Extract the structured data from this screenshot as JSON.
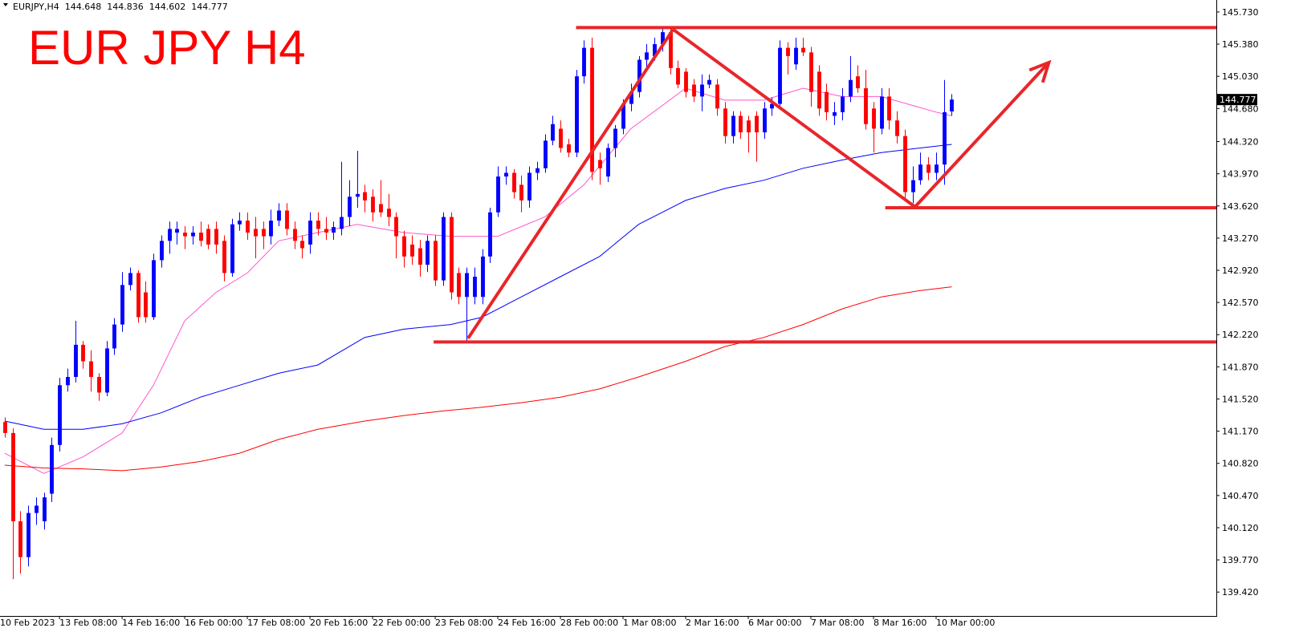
{
  "chart_data": {
    "type": "candlestick",
    "title": "EUR JPY H4",
    "header": {
      "symbol": "EURJPY,H4",
      "ohlc": [
        144.648,
        144.836,
        144.602,
        144.777
      ]
    },
    "current_price": 144.777,
    "up_color": "#0000ff",
    "down_color": "#ff0000",
    "xlim": [
      0.4,
      155.8
    ],
    "ylim": [
      139.16,
      145.86
    ],
    "xticks": [
      {
        "value": 0,
        "label": "10 Feb 2023"
      },
      {
        "value": 8,
        "label": "13 Feb 08:00"
      },
      {
        "value": 16,
        "label": "14 Feb 16:00"
      },
      {
        "value": 24,
        "label": "16 Feb 00:00"
      },
      {
        "value": 32,
        "label": "17 Feb 08:00"
      },
      {
        "value": 40,
        "label": "20 Feb 16:00"
      },
      {
        "value": 48,
        "label": "22 Feb 00:00"
      },
      {
        "value": 56,
        "label": "23 Feb 08:00"
      },
      {
        "value": 64,
        "label": "24 Feb 16:00"
      },
      {
        "value": 72,
        "label": "28 Feb 00:00"
      },
      {
        "value": 80,
        "label": "1 Mar 08:00"
      },
      {
        "value": 88,
        "label": "2 Mar 16:00"
      },
      {
        "value": 96,
        "label": "6 Mar 00:00"
      },
      {
        "value": 104,
        "label": "7 Mar 08:00"
      },
      {
        "value": 112,
        "label": "8 Mar 16:00"
      },
      {
        "value": 120,
        "label": "10 Mar 00:00"
      }
    ],
    "yticks": [
      {
        "value": 145.73,
        "label": "145.730"
      },
      {
        "value": 145.38,
        "label": "145.380"
      },
      {
        "value": 145.03,
        "label": "145.030"
      },
      {
        "value": 144.68,
        "label": "144.680"
      },
      {
        "value": 144.32,
        "label": "144.320"
      },
      {
        "value": 143.97,
        "label": "143.970"
      },
      {
        "value": 143.62,
        "label": "143.620"
      },
      {
        "value": 143.27,
        "label": "143.270"
      },
      {
        "value": 142.92,
        "label": "142.920"
      },
      {
        "value": 142.57,
        "label": "142.570"
      },
      {
        "value": 142.22,
        "label": "142.220"
      },
      {
        "value": 141.87,
        "label": "141.870"
      },
      {
        "value": 141.52,
        "label": "141.520"
      },
      {
        "value": 141.17,
        "label": "141.170"
      },
      {
        "value": 140.82,
        "label": "140.820"
      },
      {
        "value": 140.47,
        "label": "140.470"
      },
      {
        "value": 140.12,
        "label": "140.120"
      },
      {
        "value": 139.77,
        "label": "139.770"
      },
      {
        "value": 139.42,
        "label": "139.420"
      }
    ],
    "x": [
      1,
      2,
      3,
      4,
      5,
      6,
      7,
      8,
      9,
      10,
      11,
      12,
      13,
      14,
      15,
      16,
      17,
      18,
      19,
      20,
      21,
      22,
      23,
      24,
      25,
      26,
      27,
      28,
      29,
      30,
      31,
      32,
      33,
      34,
      35,
      36,
      37,
      38,
      39,
      40,
      41,
      42,
      43,
      44,
      45,
      46,
      47,
      48,
      49,
      50,
      51,
      52,
      53,
      54,
      55,
      56,
      57,
      58,
      59,
      60,
      61,
      62,
      63,
      64,
      65,
      66,
      67,
      68,
      69,
      70,
      71,
      72,
      73,
      74,
      75,
      76,
      77,
      78,
      79,
      80,
      81,
      82,
      83,
      84,
      85,
      86,
      87,
      88,
      89,
      90,
      91,
      92,
      93,
      94,
      95,
      96,
      97,
      98,
      99,
      100,
      101,
      102,
      103,
      104,
      105,
      106,
      107,
      108,
      109,
      110,
      111,
      112,
      113,
      114,
      115,
      116,
      117,
      118,
      119,
      120,
      121,
      122
    ],
    "open": [
      141.27,
      141.15,
      140.19,
      139.8,
      140.28,
      140.19,
      140.49,
      141.02,
      141.67,
      141.76,
      142.11,
      141.93,
      141.76,
      141.59,
      142.07,
      142.33,
      142.76,
      142.89,
      142.68,
      142.41,
      143.03,
      143.24,
      143.33,
      143.33,
      143.29,
      143.33,
      143.37,
      143.37,
      143.24,
      142.89,
      143.42,
      143.46,
      143.37,
      143.37,
      143.29,
      143.46,
      143.57,
      143.37,
      143.24,
      143.2,
      143.46,
      143.37,
      143.33,
      143.37,
      143.5,
      143.72,
      143.77,
      143.72,
      143.64,
      143.59,
      143.5,
      143.29,
      143.2,
      143.16,
      142.98,
      143.24,
      142.81,
      143.5,
      142.89,
      142.63,
      142.63,
      142.63,
      143.07,
      143.55,
      143.94,
      143.98,
      143.85,
      143.68,
      143.98,
      144.03,
      144.33,
      144.46,
      144.29,
      144.2,
      145.03,
      145.34,
      144.12,
      143.94,
      144.25,
      144.46,
      144.73,
      144.86,
      145.21,
      145.25,
      145.38,
      145.51,
      145.12,
      145.08,
      144.94,
      144.81,
      144.94,
      144.94,
      144.68,
      144.38,
      144.6,
      144.55,
      144.6,
      144.42,
      144.68,
      144.73,
      145.34,
      145.16,
      145.34,
      145.29,
      145.08,
      144.86,
      144.6,
      144.64,
      144.81,
      145.03,
      144.9,
      144.68,
      144.46,
      144.81,
      144.55,
      144.38,
      143.77,
      143.9,
      144.07,
      143.98,
      144.07,
      144.648
    ],
    "high": [
      141.32,
      141.2,
      140.3,
      140.36,
      140.45,
      140.5,
      141.1,
      141.75,
      141.85,
      142.37,
      142.15,
      142.05,
      141.8,
      142.15,
      142.4,
      142.9,
      142.95,
      142.92,
      142.8,
      143.1,
      143.3,
      143.45,
      143.45,
      143.4,
      143.4,
      143.45,
      143.42,
      143.45,
      143.3,
      143.48,
      143.55,
      143.55,
      143.5,
      143.45,
      143.58,
      143.65,
      143.65,
      143.45,
      143.3,
      143.55,
      143.55,
      143.5,
      143.45,
      144.1,
      143.9,
      144.22,
      143.85,
      143.8,
      143.9,
      143.75,
      143.55,
      143.35,
      143.3,
      143.25,
      143.3,
      143.3,
      143.55,
      143.55,
      142.95,
      142.95,
      142.95,
      143.15,
      143.6,
      144.05,
      144.05,
      144.02,
      143.95,
      144.05,
      144.1,
      144.4,
      144.6,
      144.55,
      144.35,
      145.1,
      145.42,
      145.45,
      144.2,
      144.3,
      144.5,
      144.78,
      144.95,
      145.25,
      145.38,
      145.45,
      145.55,
      145.55,
      145.2,
      145.12,
      145.0,
      145.05,
      145.05,
      145.0,
      144.75,
      144.65,
      144.65,
      144.6,
      144.65,
      144.75,
      144.8,
      145.42,
      145.4,
      145.45,
      145.45,
      145.35,
      145.15,
      144.95,
      144.75,
      144.9,
      145.25,
      145.15,
      145.1,
      144.75,
      144.9,
      144.9,
      144.65,
      144.45,
      144.05,
      144.2,
      144.15,
      144.2,
      144.99,
      144.836
    ],
    "low": [
      141.1,
      139.56,
      139.62,
      139.7,
      140.15,
      140.1,
      140.4,
      140.95,
      141.6,
      141.7,
      141.85,
      141.6,
      141.5,
      141.55,
      142.0,
      142.25,
      142.7,
      142.35,
      142.35,
      142.38,
      142.95,
      143.1,
      143.2,
      143.15,
      143.2,
      143.18,
      143.15,
      143.1,
      142.8,
      142.85,
      143.35,
      143.25,
      143.05,
      143.15,
      143.2,
      143.4,
      143.3,
      143.15,
      143.05,
      143.1,
      143.3,
      143.25,
      143.25,
      143.3,
      143.4,
      143.6,
      143.55,
      143.45,
      143.5,
      143.4,
      143.05,
      142.95,
      142.98,
      142.85,
      142.9,
      142.75,
      142.75,
      142.6,
      142.55,
      142.14,
      142.55,
      142.55,
      143.0,
      143.5,
      143.85,
      143.7,
      143.55,
      143.6,
      143.9,
      143.98,
      144.28,
      144.2,
      144.15,
      144.15,
      144.95,
      143.9,
      143.85,
      143.88,
      144.15,
      144.4,
      144.65,
      144.8,
      145.1,
      145.2,
      145.3,
      145.05,
      144.9,
      144.8,
      144.75,
      144.65,
      144.9,
      144.6,
      144.3,
      144.3,
      144.35,
      144.2,
      144.1,
      144.35,
      144.6,
      144.7,
      145.05,
      145.1,
      145.25,
      144.7,
      144.6,
      144.55,
      144.5,
      144.55,
      144.75,
      144.85,
      144.45,
      144.2,
      144.4,
      144.45,
      144.3,
      143.7,
      143.65,
      143.85,
      143.9,
      143.9,
      143.85,
      144.602
    ],
    "close": [
      141.15,
      140.19,
      139.8,
      140.28,
      140.36,
      140.45,
      141.02,
      141.67,
      141.76,
      142.11,
      141.93,
      141.76,
      141.59,
      142.07,
      142.33,
      142.76,
      142.89,
      142.41,
      142.41,
      143.03,
      143.24,
      143.37,
      143.37,
      143.29,
      143.33,
      143.24,
      143.2,
      143.2,
      142.89,
      143.42,
      143.46,
      143.33,
      143.29,
      143.29,
      143.46,
      143.57,
      143.37,
      143.24,
      143.16,
      143.46,
      143.37,
      143.33,
      143.39,
      143.5,
      143.72,
      143.75,
      143.68,
      143.55,
      143.55,
      143.5,
      143.29,
      143.07,
      143.07,
      142.98,
      143.24,
      142.81,
      143.5,
      142.68,
      142.63,
      142.89,
      142.85,
      143.07,
      143.55,
      143.94,
      143.98,
      143.77,
      143.68,
      143.98,
      144.03,
      144.33,
      144.51,
      144.25,
      144.2,
      145.03,
      145.34,
      143.99,
      144.03,
      144.25,
      144.46,
      144.73,
      144.86,
      145.21,
      145.29,
      145.38,
      145.51,
      145.12,
      144.94,
      144.86,
      144.81,
      144.94,
      144.99,
      144.68,
      144.38,
      144.6,
      144.42,
      144.42,
      144.42,
      144.68,
      144.73,
      145.34,
      145.25,
      145.34,
      145.29,
      144.86,
      144.68,
      144.64,
      144.64,
      144.81,
      144.99,
      144.9,
      144.51,
      144.46,
      144.81,
      144.55,
      144.38,
      143.77,
      143.9,
      144.07,
      143.98,
      144.07,
      144.64,
      144.777
    ],
    "overlays": [
      {
        "color": "#ff55cc",
        "x": [
          1,
          6,
          11,
          16,
          20,
          24,
          28,
          32,
          36,
          41,
          46,
          52,
          58,
          64,
          70,
          75,
          81,
          88,
          93,
          98,
          103,
          108,
          113,
          120,
          122
        ],
        "values": [
          140.93,
          140.71,
          140.89,
          141.15,
          141.67,
          142.37,
          142.68,
          142.89,
          143.24,
          143.33,
          143.42,
          143.33,
          143.29,
          143.29,
          143.5,
          143.85,
          144.46,
          144.9,
          144.77,
          144.77,
          144.9,
          144.81,
          144.81,
          144.64,
          144.6
        ]
      },
      {
        "color": "#0000ff",
        "x": [
          1,
          6,
          11,
          16,
          21,
          26,
          31,
          36,
          41,
          47,
          52,
          58,
          62,
          67,
          72,
          77,
          82,
          88,
          93,
          98,
          103,
          108,
          113,
          118,
          122
        ],
        "values": [
          141.28,
          141.19,
          141.19,
          141.25,
          141.37,
          141.54,
          141.67,
          141.8,
          141.89,
          142.19,
          142.28,
          142.33,
          142.41,
          142.63,
          142.85,
          143.07,
          143.42,
          143.68,
          143.81,
          143.9,
          144.03,
          144.12,
          144.2,
          144.25,
          144.29
        ]
      },
      {
        "color": "#ff0000",
        "x": [
          1,
          6,
          11,
          16,
          21,
          26,
          31,
          36,
          41,
          47,
          52,
          57,
          62,
          67,
          72,
          77,
          82,
          88,
          93,
          98,
          103,
          108,
          113,
          118,
          122
        ],
        "values": [
          140.8,
          140.77,
          140.76,
          140.74,
          140.78,
          140.84,
          140.93,
          141.08,
          141.19,
          141.28,
          141.34,
          141.39,
          141.43,
          141.48,
          141.54,
          141.63,
          141.76,
          141.93,
          142.09,
          142.19,
          142.33,
          142.5,
          142.63,
          142.7,
          142.74
        ]
      }
    ],
    "drawing_color": "#e8262a",
    "hlines": [
      {
        "value": 145.56,
        "from": 74
      },
      {
        "value": 143.6,
        "from": 113.5
      },
      {
        "value": 142.14,
        "from": 55.8
      }
    ],
    "trendlines": [
      {
        "x": [
          60.2,
          86.4
        ],
        "values": [
          142.18,
          145.54
        ]
      },
      {
        "x": [
          86.4,
          117.3
        ],
        "values": [
          145.54,
          143.61
        ]
      },
      {
        "x": [
          117.3,
          134.4
        ],
        "values": [
          143.61,
          145.18
        ],
        "arrow": true
      }
    ]
  }
}
